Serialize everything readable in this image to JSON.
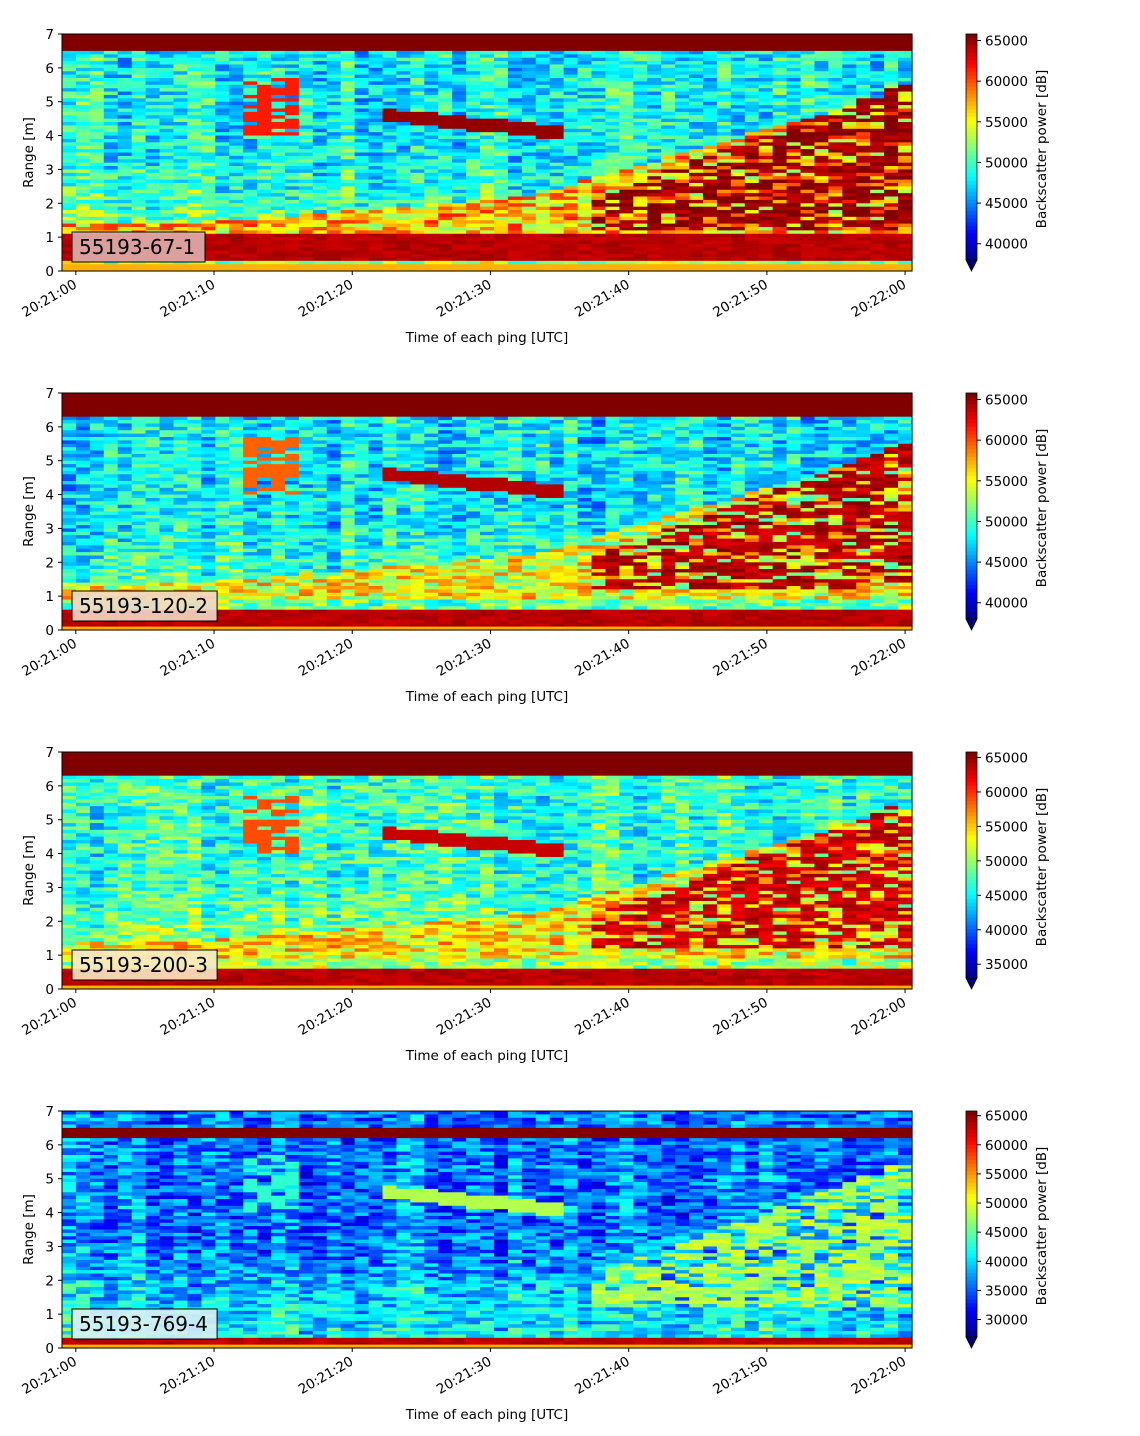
{
  "chart_data": [
    {
      "type": "heatmap",
      "label": "55193-67-1",
      "label_box_color": "#dfb0ae",
      "xlabel": "Time of each ping [UTC]",
      "ylabel": "Range [m]",
      "colorbar_label": "Backscatter power [dB]",
      "x_ticks": [
        "20:21:00",
        "20:21:10",
        "20:21:20",
        "20:21:30",
        "20:21:40",
        "20:21:50",
        "20:22:00"
      ],
      "y_ticks": [
        "0",
        "1",
        "2",
        "3",
        "4",
        "5",
        "6",
        "7"
      ],
      "ylim": [
        0,
        7
      ],
      "xlim_seconds": [
        -1,
        60.5
      ],
      "colorbar_ticks": [
        "40000",
        "45000",
        "50000",
        "55000",
        "60000",
        "65000"
      ],
      "colorbar_tick_values": [
        40000,
        45000,
        50000,
        55000,
        60000,
        65000
      ],
      "vmin": 38000,
      "vmax": 65800,
      "colormap": "jet",
      "features": {
        "surface_band": [
          6.45,
          7.0
        ],
        "bottom_band": [
          0.25,
          1.1
        ],
        "background_level": 0.32,
        "lower_layer": 0.85,
        "plume_level": 0.98
      }
    },
    {
      "type": "heatmap",
      "label": "55193-120-2",
      "label_box_color": "#f3d8c6",
      "xlabel": "Time of each ping [UTC]",
      "ylabel": "Range [m]",
      "colorbar_label": "Backscatter power [dB]",
      "x_ticks": [
        "20:21:00",
        "20:21:10",
        "20:21:20",
        "20:21:30",
        "20:21:40",
        "20:21:50",
        "20:22:00"
      ],
      "y_ticks": [
        "0",
        "1",
        "2",
        "3",
        "4",
        "5",
        "6",
        "7"
      ],
      "ylim": [
        0,
        7
      ],
      "xlim_seconds": [
        -1,
        60.5
      ],
      "colorbar_ticks": [
        "40000",
        "45000",
        "50000",
        "55000",
        "60000",
        "65000"
      ],
      "colorbar_tick_values": [
        40000,
        45000,
        50000,
        55000,
        60000,
        65000
      ],
      "vmin": 38000,
      "vmax": 65800,
      "colormap": "jet",
      "features": {
        "surface_band": [
          6.3,
          7.0
        ],
        "bottom_band": [
          0.1,
          0.6
        ],
        "background_level": 0.3,
        "lower_layer": 0.78,
        "plume_level": 0.95
      }
    },
    {
      "type": "heatmap",
      "label": "55193-200-3",
      "label_box_color": "#fbe9c4",
      "xlabel": "Time of each ping [UTC]",
      "ylabel": "Range [m]",
      "colorbar_label": "Backscatter power [dB]",
      "x_ticks": [
        "20:21:00",
        "20:21:10",
        "20:21:20",
        "20:21:30",
        "20:21:40",
        "20:21:50",
        "20:22:00"
      ],
      "y_ticks": [
        "0",
        "1",
        "2",
        "3",
        "4",
        "5",
        "6",
        "7"
      ],
      "ylim": [
        0,
        7
      ],
      "xlim_seconds": [
        -1,
        60.5
      ],
      "colorbar_ticks": [
        "35000",
        "40000",
        "45000",
        "50000",
        "55000",
        "60000",
        "65000"
      ],
      "colorbar_tick_values": [
        35000,
        40000,
        45000,
        50000,
        55000,
        60000,
        65000
      ],
      "vmin": 33000,
      "vmax": 65800,
      "colormap": "jet",
      "features": {
        "surface_band": [
          6.3,
          7.0
        ],
        "bottom_band": [
          0.1,
          0.6
        ],
        "background_level": 0.36,
        "lower_layer": 0.8,
        "plume_level": 0.93
      }
    },
    {
      "type": "heatmap",
      "label": "55193-769-4",
      "label_box_color": "#d9f0f5",
      "xlabel": "Time of each ping [UTC]",
      "ylabel": "Range [m]",
      "colorbar_label": "Backscatter power [dB]",
      "x_ticks": [
        "20:21:00",
        "20:21:10",
        "20:21:20",
        "20:21:30",
        "20:21:40",
        "20:21:50",
        "20:22:00"
      ],
      "y_ticks": [
        "0",
        "1",
        "2",
        "3",
        "4",
        "5",
        "6",
        "7"
      ],
      "ylim": [
        0,
        7
      ],
      "xlim_seconds": [
        -1,
        60.5
      ],
      "colorbar_ticks": [
        "30000",
        "35000",
        "40000",
        "45000",
        "50000",
        "55000",
        "60000",
        "65000"
      ],
      "colorbar_tick_values": [
        30000,
        35000,
        40000,
        45000,
        50000,
        55000,
        60000,
        65000
      ],
      "vmin": 27000,
      "vmax": 65800,
      "colormap": "jet",
      "features": {
        "surface_band": [
          6.2,
          6.5
        ],
        "bottom_band": [
          0.1,
          0.3
        ],
        "background_level": 0.18,
        "lower_layer": 0.42,
        "plume_level": 0.55
      }
    }
  ]
}
